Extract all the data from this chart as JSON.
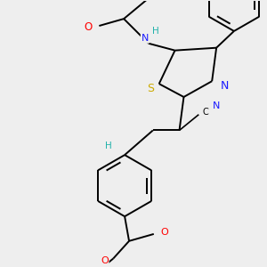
{
  "bg_color": "#eeeeee",
  "atom_colors": {
    "C": "#000000",
    "N": "#1a1aff",
    "O": "#ff0000",
    "S": "#ccaa00",
    "H": "#20b2aa"
  },
  "bond_color": "#000000",
  "bond_width": 1.4
}
